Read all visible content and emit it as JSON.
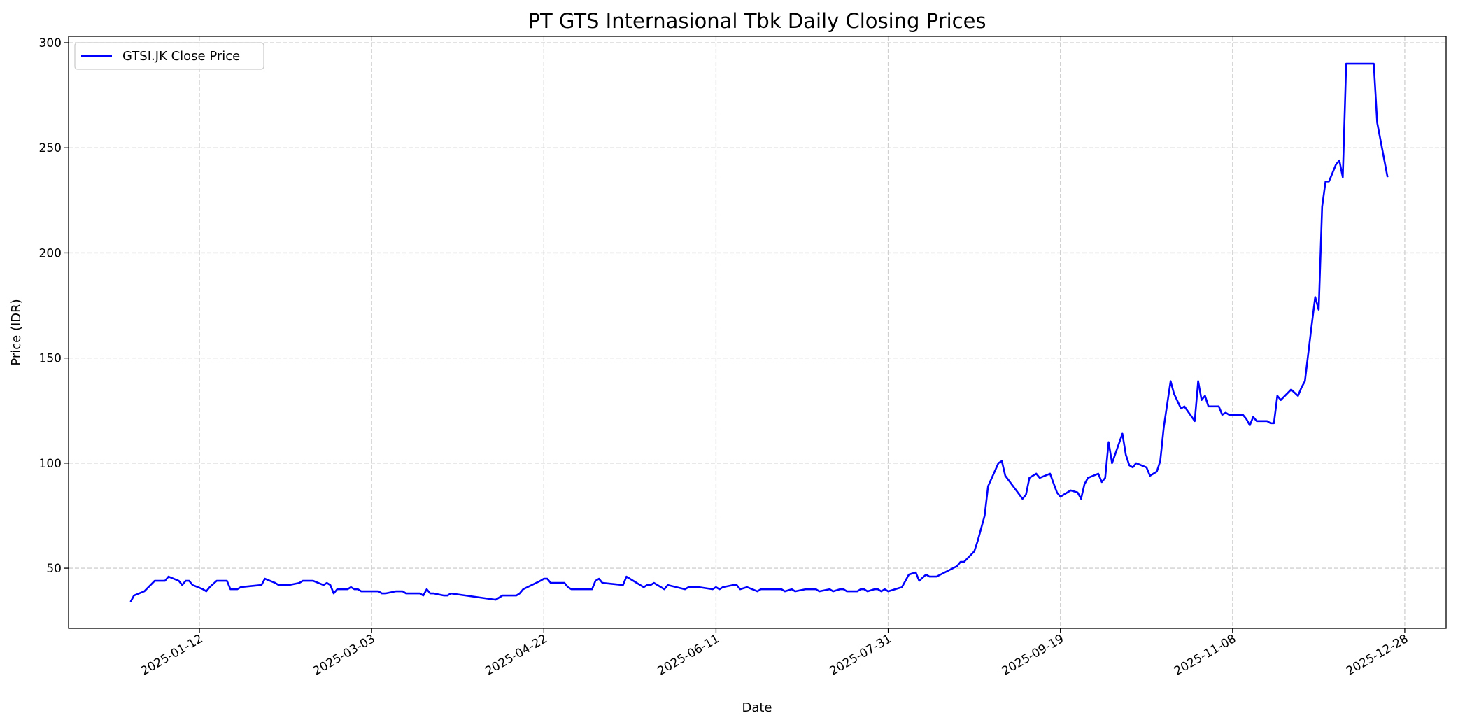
{
  "chart_data": {
    "type": "line",
    "title": "PT GTS Internasional Tbk Daily Closing Prices",
    "xlabel": "Date",
    "ylabel": "Price (IDR)",
    "xlim": [
      "2024-12-05",
      "2026-01-09"
    ],
    "ylim": [
      21.4,
      303
    ],
    "xticks": [
      "2025-01-12",
      "2025-03-03",
      "2025-04-22",
      "2025-06-11",
      "2025-07-31",
      "2025-09-19",
      "2025-11-08",
      "2025-12-28"
    ],
    "yticks": [
      50,
      100,
      150,
      200,
      250,
      300
    ],
    "grid": true,
    "legend_position": "top-left",
    "series": [
      {
        "name": "GTSI.JK Close Price",
        "color": "#0000ff",
        "points": [
          [
            "2024-12-23",
            34
          ],
          [
            "2024-12-24",
            37
          ],
          [
            "2024-12-27",
            39
          ],
          [
            "2024-12-30",
            44
          ],
          [
            "2025-01-02",
            44
          ],
          [
            "2025-01-03",
            46
          ],
          [
            "2025-01-06",
            44
          ],
          [
            "2025-01-07",
            42
          ],
          [
            "2025-01-08",
            44
          ],
          [
            "2025-01-09",
            44
          ],
          [
            "2025-01-10",
            42
          ],
          [
            "2025-01-13",
            40
          ],
          [
            "2025-01-14",
            39
          ],
          [
            "2025-01-15",
            41
          ],
          [
            "2025-01-17",
            44
          ],
          [
            "2025-01-20",
            44
          ],
          [
            "2025-01-21",
            40
          ],
          [
            "2025-01-23",
            40
          ],
          [
            "2025-01-24",
            41
          ],
          [
            "2025-01-30",
            42
          ],
          [
            "2025-01-31",
            45
          ],
          [
            "2025-02-03",
            43
          ],
          [
            "2025-02-04",
            42
          ],
          [
            "2025-02-07",
            42
          ],
          [
            "2025-02-10",
            43
          ],
          [
            "2025-02-11",
            44
          ],
          [
            "2025-02-14",
            44
          ],
          [
            "2025-02-17",
            42
          ],
          [
            "2025-02-18",
            43
          ],
          [
            "2025-02-19",
            42
          ],
          [
            "2025-02-20",
            38
          ],
          [
            "2025-02-21",
            40
          ],
          [
            "2025-02-24",
            40
          ],
          [
            "2025-02-25",
            41
          ],
          [
            "2025-02-26",
            40
          ],
          [
            "2025-02-27",
            40
          ],
          [
            "2025-02-28",
            39
          ],
          [
            "2025-03-05",
            39
          ],
          [
            "2025-03-06",
            38
          ],
          [
            "2025-03-07",
            38
          ],
          [
            "2025-03-10",
            39
          ],
          [
            "2025-03-12",
            39
          ],
          [
            "2025-03-13",
            38
          ],
          [
            "2025-03-17",
            38
          ],
          [
            "2025-03-18",
            37
          ],
          [
            "2025-03-19",
            40
          ],
          [
            "2025-03-20",
            38
          ],
          [
            "2025-03-21",
            38
          ],
          [
            "2025-03-24",
            37
          ],
          [
            "2025-03-25",
            37
          ],
          [
            "2025-03-26",
            38
          ],
          [
            "2025-04-08",
            35
          ],
          [
            "2025-04-10",
            37
          ],
          [
            "2025-04-14",
            37
          ],
          [
            "2025-04-15",
            38
          ],
          [
            "2025-04-16",
            40
          ],
          [
            "2025-04-21",
            44
          ],
          [
            "2025-04-22",
            45
          ],
          [
            "2025-04-23",
            45
          ],
          [
            "2025-04-24",
            43
          ],
          [
            "2025-04-28",
            43
          ],
          [
            "2025-04-29",
            41
          ],
          [
            "2025-04-30",
            40
          ],
          [
            "2025-05-06",
            40
          ],
          [
            "2025-05-07",
            44
          ],
          [
            "2025-05-08",
            45
          ],
          [
            "2025-05-09",
            43
          ],
          [
            "2025-05-15",
            42
          ],
          [
            "2025-05-16",
            46
          ],
          [
            "2025-05-20",
            42
          ],
          [
            "2025-05-21",
            41
          ],
          [
            "2025-05-22",
            42
          ],
          [
            "2025-05-23",
            42
          ],
          [
            "2025-05-24",
            43
          ],
          [
            "2025-05-26",
            41
          ],
          [
            "2025-05-27",
            40
          ],
          [
            "2025-05-28",
            42
          ],
          [
            "2025-06-02",
            40
          ],
          [
            "2025-06-03",
            41
          ],
          [
            "2025-06-06",
            41
          ],
          [
            "2025-06-10",
            40
          ],
          [
            "2025-06-11",
            41
          ],
          [
            "2025-06-12",
            40
          ],
          [
            "2025-06-13",
            41
          ],
          [
            "2025-06-16",
            42
          ],
          [
            "2025-06-17",
            42
          ],
          [
            "2025-06-18",
            40
          ],
          [
            "2025-06-20",
            41
          ],
          [
            "2025-06-23",
            39
          ],
          [
            "2025-06-24",
            40
          ],
          [
            "2025-06-30",
            40
          ],
          [
            "2025-07-01",
            39
          ],
          [
            "2025-07-03",
            40
          ],
          [
            "2025-07-04",
            39
          ],
          [
            "2025-07-07",
            40
          ],
          [
            "2025-07-10",
            40
          ],
          [
            "2025-07-11",
            39
          ],
          [
            "2025-07-14",
            40
          ],
          [
            "2025-07-15",
            39
          ],
          [
            "2025-07-17",
            40
          ],
          [
            "2025-07-18",
            40
          ],
          [
            "2025-07-19",
            39
          ],
          [
            "2025-07-22",
            39
          ],
          [
            "2025-07-23",
            40
          ],
          [
            "2025-07-24",
            40
          ],
          [
            "2025-07-25",
            39
          ],
          [
            "2025-07-27",
            40
          ],
          [
            "2025-07-28",
            40
          ],
          [
            "2025-07-29",
            39
          ],
          [
            "2025-07-30",
            40
          ],
          [
            "2025-07-31",
            39
          ],
          [
            "2025-08-02",
            40
          ],
          [
            "2025-08-04",
            41
          ],
          [
            "2025-08-06",
            47
          ],
          [
            "2025-08-08",
            48
          ],
          [
            "2025-08-09",
            44
          ],
          [
            "2025-08-11",
            47
          ],
          [
            "2025-08-12",
            46
          ],
          [
            "2025-08-14",
            46
          ],
          [
            "2025-08-20",
            51
          ],
          [
            "2025-08-21",
            53
          ],
          [
            "2025-08-22",
            53
          ],
          [
            "2025-08-25",
            58
          ],
          [
            "2025-08-26",
            63
          ],
          [
            "2025-08-28",
            75
          ],
          [
            "2025-08-29",
            89
          ],
          [
            "2025-09-01",
            100
          ],
          [
            "2025-09-02",
            101
          ],
          [
            "2025-09-03",
            94
          ],
          [
            "2025-09-08",
            83
          ],
          [
            "2025-09-09",
            85
          ],
          [
            "2025-09-10",
            93
          ],
          [
            "2025-09-12",
            95
          ],
          [
            "2025-09-13",
            93
          ],
          [
            "2025-09-16",
            95
          ],
          [
            "2025-09-18",
            86
          ],
          [
            "2025-09-19",
            84
          ],
          [
            "2025-09-22",
            87
          ],
          [
            "2025-09-24",
            86
          ],
          [
            "2025-09-25",
            83
          ],
          [
            "2025-09-26",
            90
          ],
          [
            "2025-09-27",
            93
          ],
          [
            "2025-09-30",
            95
          ],
          [
            "2025-10-01",
            91
          ],
          [
            "2025-10-02",
            93
          ],
          [
            "2025-10-03",
            110
          ],
          [
            "2025-10-04",
            100
          ],
          [
            "2025-10-07",
            114
          ],
          [
            "2025-10-08",
            104
          ],
          [
            "2025-10-09",
            99
          ],
          [
            "2025-10-10",
            98
          ],
          [
            "2025-10-11",
            100
          ],
          [
            "2025-10-14",
            98
          ],
          [
            "2025-10-15",
            94
          ],
          [
            "2025-10-17",
            96
          ],
          [
            "2025-10-18",
            101
          ],
          [
            "2025-10-19",
            117
          ],
          [
            "2025-10-21",
            139
          ],
          [
            "2025-10-22",
            133
          ],
          [
            "2025-10-24",
            126
          ],
          [
            "2025-10-25",
            127
          ],
          [
            "2025-10-28",
            120
          ],
          [
            "2025-10-29",
            139
          ],
          [
            "2025-10-30",
            130
          ],
          [
            "2025-10-31",
            132
          ],
          [
            "2025-11-01",
            127
          ],
          [
            "2025-11-04",
            127
          ],
          [
            "2025-11-05",
            123
          ],
          [
            "2025-11-06",
            124
          ],
          [
            "2025-11-07",
            123
          ],
          [
            "2025-11-11",
            123
          ],
          [
            "2025-11-12",
            121
          ],
          [
            "2025-11-13",
            118
          ],
          [
            "2025-11-14",
            122
          ],
          [
            "2025-11-15",
            120
          ],
          [
            "2025-11-18",
            120
          ],
          [
            "2025-11-19",
            119
          ],
          [
            "2025-11-20",
            119
          ],
          [
            "2025-11-21",
            132
          ],
          [
            "2025-11-22",
            130
          ],
          [
            "2025-11-25",
            135
          ],
          [
            "2025-11-27",
            132
          ],
          [
            "2025-11-28",
            136
          ],
          [
            "2025-11-29",
            139
          ],
          [
            "2025-12-01",
            166
          ],
          [
            "2025-12-02",
            179
          ],
          [
            "2025-12-03",
            173
          ],
          [
            "2025-12-04",
            222
          ],
          [
            "2025-12-05",
            234
          ],
          [
            "2025-12-06",
            234
          ],
          [
            "2025-12-08",
            242
          ],
          [
            "2025-12-09",
            244
          ],
          [
            "2025-12-10",
            236
          ],
          [
            "2025-12-11",
            290
          ],
          [
            "2025-12-19",
            290
          ],
          [
            "2025-12-20",
            262
          ],
          [
            "2025-12-23",
            236
          ]
        ]
      }
    ]
  }
}
